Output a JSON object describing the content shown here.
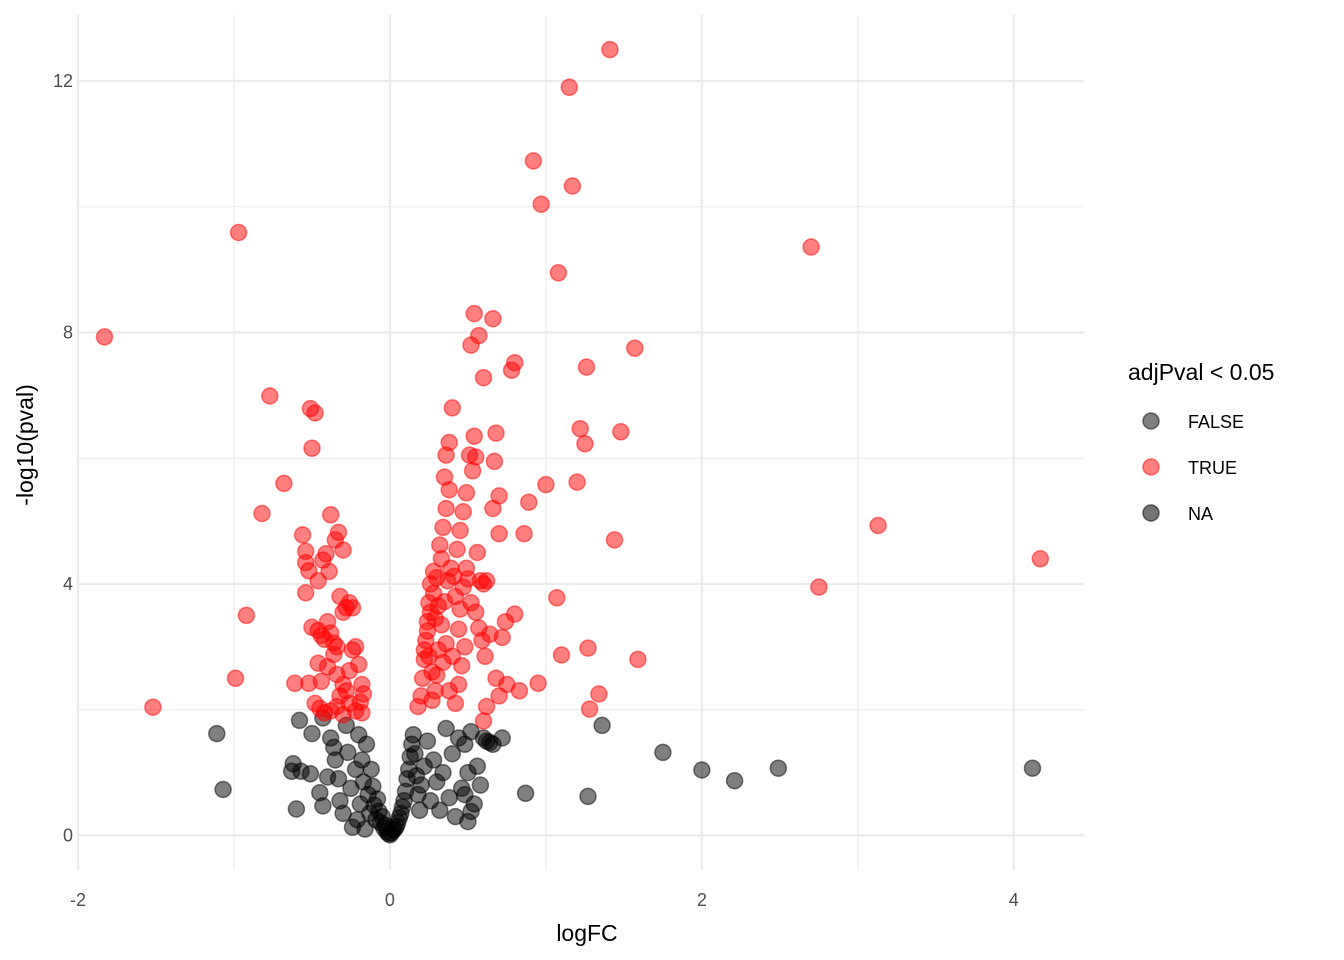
{
  "chart_data": {
    "type": "scatter",
    "title": "",
    "xlabel": "logFC",
    "ylabel": "-log10(pval)",
    "xlim": [
      -2.0,
      4.45
    ],
    "ylim": [
      -0.55,
      13.05
    ],
    "x_ticks": [
      -2,
      0,
      2,
      4
    ],
    "x_tick_labels": [
      "-2",
      "0",
      "2",
      "4"
    ],
    "y_ticks": [
      0,
      4,
      8,
      12
    ],
    "y_tick_labels": [
      "0",
      "4",
      "8",
      "12"
    ],
    "grid": true,
    "legend": {
      "title": "adjPval < 0.05",
      "placement": "right"
    },
    "series": [
      {
        "name": "FALSE",
        "color": "#000000",
        "points": [
          [
            -1.11,
            1.62
          ],
          [
            -1.07,
            0.73
          ],
          [
            -0.58,
            1.83
          ],
          [
            -0.62,
            1.14
          ],
          [
            -0.63,
            1.02
          ],
          [
            -0.57,
            1.02
          ],
          [
            -0.51,
            0.98
          ],
          [
            -0.6,
            0.42
          ],
          [
            -0.5,
            1.62
          ],
          [
            -0.45,
            0.68
          ],
          [
            -0.43,
            0.47
          ],
          [
            -0.4,
            0.93
          ],
          [
            -0.43,
            1.87
          ],
          [
            -0.38,
            1.55
          ],
          [
            -0.36,
            1.4
          ],
          [
            -0.35,
            1.2
          ],
          [
            -0.33,
            0.9
          ],
          [
            -0.32,
            0.55
          ],
          [
            -0.3,
            0.35
          ],
          [
            -0.28,
            1.75
          ],
          [
            -0.27,
            1.32
          ],
          [
            -0.25,
            0.75
          ],
          [
            -0.24,
            0.13
          ],
          [
            -0.22,
            1.05
          ],
          [
            -0.21,
            0.25
          ],
          [
            -0.2,
            1.6
          ],
          [
            -0.19,
            0.5
          ],
          [
            -0.18,
            1.2
          ],
          [
            -0.17,
            0.85
          ],
          [
            -0.16,
            0.1
          ],
          [
            -0.15,
            1.45
          ],
          [
            -0.14,
            0.65
          ],
          [
            -0.13,
            0.35
          ],
          [
            -0.12,
            1.05
          ],
          [
            -0.11,
            0.78
          ],
          [
            -0.1,
            0.48
          ],
          [
            -0.09,
            0.25
          ],
          [
            -0.08,
            0.58
          ],
          [
            -0.07,
            0.38
          ],
          [
            -0.06,
            0.2
          ],
          [
            -0.05,
            0.3
          ],
          [
            -0.04,
            0.12
          ],
          [
            -0.03,
            0.16
          ],
          [
            -0.02,
            0.06
          ],
          [
            -0.01,
            0.03
          ],
          [
            0.0,
            0.01
          ],
          [
            0.01,
            0.04
          ],
          [
            0.02,
            0.08
          ],
          [
            0.03,
            0.1
          ],
          [
            0.04,
            0.14
          ],
          [
            0.05,
            0.2
          ],
          [
            0.06,
            0.28
          ],
          [
            0.07,
            0.35
          ],
          [
            0.08,
            0.45
          ],
          [
            0.09,
            0.55
          ],
          [
            0.1,
            0.7
          ],
          [
            0.11,
            0.9
          ],
          [
            0.12,
            1.05
          ],
          [
            0.13,
            1.25
          ],
          [
            0.14,
            1.45
          ],
          [
            0.15,
            1.6
          ],
          [
            0.16,
            1.3
          ],
          [
            0.17,
            0.95
          ],
          [
            0.18,
            0.65
          ],
          [
            0.19,
            0.4
          ],
          [
            0.2,
            0.8
          ],
          [
            0.22,
            1.1
          ],
          [
            0.24,
            1.5
          ],
          [
            0.26,
            0.55
          ],
          [
            0.28,
            1.2
          ],
          [
            0.3,
            0.85
          ],
          [
            0.32,
            0.4
          ],
          [
            0.34,
            1.0
          ],
          [
            0.36,
            1.7
          ],
          [
            0.38,
            0.6
          ],
          [
            0.4,
            1.3
          ],
          [
            0.42,
            0.3
          ],
          [
            0.44,
            1.55
          ],
          [
            0.46,
            0.75
          ],
          [
            0.48,
            1.45
          ],
          [
            0.5,
            1.0
          ],
          [
            0.52,
            1.65
          ],
          [
            0.54,
            0.5
          ],
          [
            0.56,
            1.1
          ],
          [
            0.58,
            0.8
          ],
          [
            0.6,
            1.55
          ],
          [
            0.62,
            1.5
          ],
          [
            0.64,
            1.48
          ],
          [
            0.66,
            1.45
          ],
          [
            0.72,
            1.55
          ],
          [
            0.5,
            0.22
          ],
          [
            0.52,
            0.38
          ],
          [
            0.48,
            0.65
          ],
          [
            0.87,
            0.67
          ],
          [
            1.27,
            0.62
          ],
          [
            1.36,
            1.75
          ],
          [
            1.75,
            1.32
          ],
          [
            2.0,
            1.04
          ],
          [
            2.21,
            0.87
          ],
          [
            2.49,
            1.07
          ],
          [
            4.12,
            1.07
          ]
        ]
      },
      {
        "name": "TRUE",
        "color": "#ff0000",
        "points": [
          [
            -1.83,
            7.93
          ],
          [
            -1.52,
            2.04
          ],
          [
            -0.97,
            9.59
          ],
          [
            -0.92,
            3.5
          ],
          [
            -0.99,
            2.5
          ],
          [
            -0.77,
            6.99
          ],
          [
            -0.82,
            5.12
          ],
          [
            -0.68,
            5.6
          ],
          [
            -0.61,
            2.42
          ],
          [
            -0.56,
            4.78
          ],
          [
            -0.54,
            4.52
          ],
          [
            -0.54,
            4.34
          ],
          [
            -0.52,
            4.21
          ],
          [
            -0.54,
            3.86
          ],
          [
            -0.51,
            6.79
          ],
          [
            -0.5,
            6.16
          ],
          [
            -0.48,
            6.72
          ],
          [
            -0.5,
            3.31
          ],
          [
            -0.46,
            4.05
          ],
          [
            -0.43,
            4.38
          ],
          [
            -0.41,
            4.48
          ],
          [
            -0.39,
            4.2
          ],
          [
            -0.38,
            5.1
          ],
          [
            -0.35,
            4.7
          ],
          [
            -0.33,
            4.82
          ],
          [
            -0.3,
            4.54
          ],
          [
            -0.46,
            3.26
          ],
          [
            -0.44,
            3.18
          ],
          [
            -0.42,
            3.12
          ],
          [
            -0.4,
            3.4
          ],
          [
            -0.38,
            3.22
          ],
          [
            -0.36,
            3.06
          ],
          [
            -0.34,
            3.0
          ],
          [
            -0.32,
            3.8
          ],
          [
            -0.3,
            3.55
          ],
          [
            -0.28,
            3.62
          ],
          [
            -0.26,
            3.7
          ],
          [
            -0.24,
            3.62
          ],
          [
            -0.46,
            2.74
          ],
          [
            -0.44,
            2.45
          ],
          [
            -0.4,
            2.68
          ],
          [
            -0.36,
            2.88
          ],
          [
            -0.34,
            2.56
          ],
          [
            -0.32,
            2.22
          ],
          [
            -0.3,
            2.4
          ],
          [
            -0.28,
            2.3
          ],
          [
            -0.26,
            2.62
          ],
          [
            -0.24,
            2.95
          ],
          [
            -0.22,
            3.0
          ],
          [
            -0.2,
            2.72
          ],
          [
            -0.19,
            2.12
          ],
          [
            -0.18,
            2.4
          ],
          [
            -0.17,
            2.25
          ],
          [
            -0.52,
            2.42
          ],
          [
            -0.48,
            2.1
          ],
          [
            -0.45,
            2.02
          ],
          [
            -0.42,
            1.95
          ],
          [
            -0.38,
            1.98
          ],
          [
            -0.34,
            2.05
          ],
          [
            -0.3,
            1.92
          ],
          [
            -0.26,
            2.1
          ],
          [
            -0.22,
            1.98
          ],
          [
            -0.18,
            1.95
          ],
          [
            0.18,
            2.05
          ],
          [
            0.2,
            2.22
          ],
          [
            0.21,
            2.5
          ],
          [
            0.22,
            2.8
          ],
          [
            0.23,
            3.1
          ],
          [
            0.24,
            3.4
          ],
          [
            0.25,
            3.7
          ],
          [
            0.26,
            4.0
          ],
          [
            0.22,
            2.95
          ],
          [
            0.24,
            3.25
          ],
          [
            0.26,
            3.55
          ],
          [
            0.28,
            3.85
          ],
          [
            0.3,
            4.1
          ],
          [
            0.27,
            2.6
          ],
          [
            0.29,
            2.3
          ],
          [
            0.31,
            2.95
          ],
          [
            0.33,
            3.35
          ],
          [
            0.35,
            3.72
          ],
          [
            0.37,
            4.05
          ],
          [
            0.39,
            4.25
          ],
          [
            0.32,
            4.62
          ],
          [
            0.34,
            4.9
          ],
          [
            0.36,
            5.2
          ],
          [
            0.38,
            5.5
          ],
          [
            0.4,
            6.8
          ],
          [
            0.38,
            6.25
          ],
          [
            0.36,
            6.05
          ],
          [
            0.35,
            5.7
          ],
          [
            0.42,
            2.1
          ],
          [
            0.44,
            2.4
          ],
          [
            0.46,
            2.7
          ],
          [
            0.48,
            3.0
          ],
          [
            0.45,
            3.6
          ],
          [
            0.47,
            3.95
          ],
          [
            0.49,
            4.25
          ],
          [
            0.43,
            4.55
          ],
          [
            0.45,
            4.85
          ],
          [
            0.47,
            5.15
          ],
          [
            0.49,
            5.45
          ],
          [
            0.51,
            6.05
          ],
          [
            0.53,
            5.8
          ],
          [
            0.55,
            6.02
          ],
          [
            0.54,
            6.35
          ],
          [
            0.52,
            7.8
          ],
          [
            0.54,
            8.3
          ],
          [
            0.57,
            7.95
          ],
          [
            0.6,
            7.28
          ],
          [
            0.52,
            3.7
          ],
          [
            0.55,
            3.55
          ],
          [
            0.57,
            3.3
          ],
          [
            0.59,
            3.1
          ],
          [
            0.61,
            2.85
          ],
          [
            0.56,
            4.5
          ],
          [
            0.58,
            4.05
          ],
          [
            0.6,
            4.0
          ],
          [
            0.62,
            4.05
          ],
          [
            0.64,
            3.2
          ],
          [
            0.66,
            5.2
          ],
          [
            0.67,
            5.95
          ],
          [
            0.68,
            6.4
          ],
          [
            0.66,
            8.22
          ],
          [
            0.7,
            4.8
          ],
          [
            0.7,
            5.4
          ],
          [
            0.72,
            3.15
          ],
          [
            0.74,
            3.4
          ],
          [
            0.75,
            2.4
          ],
          [
            0.7,
            2.22
          ],
          [
            0.68,
            2.5
          ],
          [
            0.62,
            2.05
          ],
          [
            0.6,
            1.82
          ],
          [
            0.78,
            7.4
          ],
          [
            0.8,
            7.52
          ],
          [
            0.8,
            3.52
          ],
          [
            0.83,
            2.3
          ],
          [
            0.86,
            4.8
          ],
          [
            0.89,
            5.3
          ],
          [
            0.92,
            10.73
          ],
          [
            0.95,
            2.42
          ],
          [
            0.97,
            10.04
          ],
          [
            1.0,
            5.58
          ],
          [
            1.07,
            3.78
          ],
          [
            1.08,
            8.95
          ],
          [
            1.1,
            2.87
          ],
          [
            1.15,
            11.9
          ],
          [
            1.17,
            10.33
          ],
          [
            1.2,
            5.62
          ],
          [
            1.22,
            6.47
          ],
          [
            1.25,
            6.23
          ],
          [
            1.26,
            7.45
          ],
          [
            1.27,
            2.98
          ],
          [
            1.28,
            2.01
          ],
          [
            1.34,
            2.25
          ],
          [
            1.41,
            12.5
          ],
          [
            1.44,
            4.7
          ],
          [
            1.48,
            6.42
          ],
          [
            1.57,
            7.75
          ],
          [
            1.59,
            2.8
          ],
          [
            2.7,
            9.36
          ],
          [
            2.75,
            3.95
          ],
          [
            3.13,
            4.93
          ],
          [
            4.17,
            4.4
          ],
          [
            0.28,
            4.2
          ],
          [
            0.33,
            4.4
          ],
          [
            0.41,
            4.12
          ],
          [
            0.44,
            3.28
          ],
          [
            0.4,
            2.85
          ],
          [
            0.36,
            3.05
          ],
          [
            0.31,
            3.65
          ],
          [
            0.27,
            2.15
          ],
          [
            0.3,
            2.55
          ],
          [
            0.34,
            2.75
          ],
          [
            0.38,
            2.3
          ],
          [
            0.42,
            3.8
          ],
          [
            0.5,
            4.08
          ],
          [
            0.29,
            3.45
          ],
          [
            0.25,
            2.85
          ]
        ]
      },
      {
        "name": "NA",
        "color": "#000000",
        "points": []
      }
    ]
  }
}
